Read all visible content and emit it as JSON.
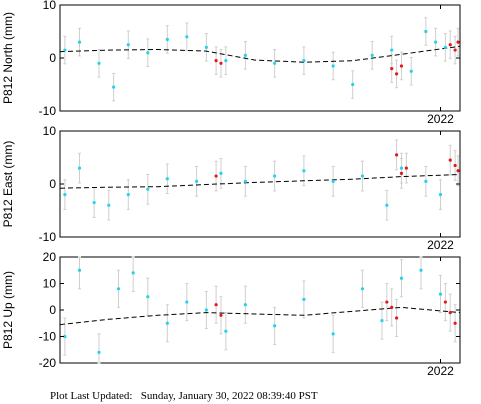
{
  "footer": {
    "label": "Plot Last Updated:",
    "timestamp": "Sunday, January 30, 2022 08:39:40 PST"
  },
  "colors": {
    "normal": "#22d3ee",
    "recent": "#e31a1c",
    "errorbar": "#cfcfcf",
    "model": "#000000",
    "frame": "#000000"
  },
  "chart_data": [
    {
      "type": "scatter",
      "ylabel": "P812 North (mm)",
      "ylim": [
        -10,
        10
      ],
      "yticks": [
        -10,
        0,
        10
      ],
      "xlim": [
        2018.1,
        2022.2
      ],
      "xticks": [
        {
          "value": 2022.0,
          "label": "2022"
        }
      ],
      "error_bars": true,
      "sigma": 2.6,
      "trend": {
        "x": [
          2018.1,
          2018.6,
          2019.1,
          2019.6,
          2020.1,
          2020.6,
          2021.1,
          2021.6,
          2022.2
        ],
        "y": [
          1.2,
          1.5,
          1.6,
          1.3,
          -0.4,
          -0.8,
          -0.5,
          0.7,
          2.2
        ]
      },
      "normal_points": [
        [
          2018.15,
          1.5
        ],
        [
          2018.3,
          3.0
        ],
        [
          2018.5,
          -1.0
        ],
        [
          2018.65,
          -5.5
        ],
        [
          2018.8,
          2.5
        ],
        [
          2019.0,
          1.0
        ],
        [
          2019.2,
          3.5
        ],
        [
          2019.4,
          4.0
        ],
        [
          2019.6,
          2.0
        ],
        [
          2019.8,
          -0.5
        ],
        [
          2020.0,
          0.5
        ],
        [
          2020.3,
          -1.0
        ],
        [
          2020.6,
          -0.5
        ],
        [
          2020.9,
          -1.5
        ],
        [
          2021.1,
          -5.0
        ],
        [
          2021.3,
          0.5
        ],
        [
          2021.5,
          1.5
        ],
        [
          2021.7,
          -2.5
        ],
        [
          2021.85,
          5.0
        ],
        [
          2021.95,
          3.0
        ],
        [
          2022.05,
          2.0
        ]
      ],
      "recent_points": [
        [
          2019.7,
          -0.5
        ],
        [
          2019.75,
          -1.0
        ],
        [
          2021.5,
          -2.0
        ],
        [
          2021.55,
          -3.0
        ],
        [
          2021.6,
          -1.5
        ],
        [
          2022.1,
          2.5
        ],
        [
          2022.15,
          1.5
        ],
        [
          2022.18,
          3.0
        ]
      ]
    },
    {
      "type": "scatter",
      "ylabel": "P812 East (mm)",
      "ylim": [
        -10,
        10
      ],
      "yticks": [
        -10,
        0,
        10
      ],
      "xlim": [
        2018.1,
        2022.2
      ],
      "xticks": [
        {
          "value": 2022.0,
          "label": "2022"
        }
      ],
      "error_bars": true,
      "sigma": 2.8,
      "trend": {
        "x": [
          2018.1,
          2018.6,
          2019.1,
          2019.6,
          2020.1,
          2020.6,
          2021.1,
          2021.6,
          2022.2
        ],
        "y": [
          -0.8,
          -0.6,
          -0.5,
          -0.1,
          0.3,
          0.6,
          0.9,
          1.4,
          1.8
        ]
      },
      "normal_points": [
        [
          2018.15,
          -2.0
        ],
        [
          2018.3,
          3.0
        ],
        [
          2018.45,
          -3.5
        ],
        [
          2018.6,
          -4.0
        ],
        [
          2018.8,
          -2.0
        ],
        [
          2019.0,
          -1.0
        ],
        [
          2019.2,
          1.0
        ],
        [
          2019.5,
          0.5
        ],
        [
          2019.75,
          2.0
        ],
        [
          2020.0,
          0.5
        ],
        [
          2020.3,
          1.5
        ],
        [
          2020.6,
          2.5
        ],
        [
          2020.9,
          0.5
        ],
        [
          2021.2,
          1.5
        ],
        [
          2021.45,
          -4.0
        ],
        [
          2021.6,
          3.0
        ],
        [
          2021.85,
          0.5
        ],
        [
          2022.0,
          -2.0
        ]
      ],
      "recent_points": [
        [
          2019.7,
          1.5
        ],
        [
          2021.55,
          5.5
        ],
        [
          2021.6,
          2.0
        ],
        [
          2021.65,
          3.0
        ],
        [
          2022.1,
          4.5
        ],
        [
          2022.15,
          3.5
        ],
        [
          2022.18,
          2.5
        ]
      ]
    },
    {
      "type": "scatter",
      "ylabel": "P812 Up (mm)",
      "ylim": [
        -20,
        20
      ],
      "yticks": [
        -20,
        -10,
        0,
        10,
        20
      ],
      "xlim": [
        2018.1,
        2022.2
      ],
      "xticks": [
        {
          "value": 2022.0,
          "label": "2022"
        }
      ],
      "error_bars": true,
      "sigma": 7.0,
      "trend": {
        "x": [
          2018.1,
          2018.6,
          2019.1,
          2019.6,
          2020.1,
          2020.6,
          2021.1,
          2021.6,
          2022.2
        ],
        "y": [
          -5.5,
          -3.5,
          -2.0,
          -1.0,
          -1.5,
          -2.0,
          -0.5,
          1.0,
          -1.0
        ]
      },
      "normal_points": [
        [
          2018.15,
          -10.0
        ],
        [
          2018.3,
          15.0
        ],
        [
          2018.5,
          -16.0
        ],
        [
          2018.7,
          8.0
        ],
        [
          2018.85,
          14.0
        ],
        [
          2019.0,
          5.0
        ],
        [
          2019.2,
          -5.0
        ],
        [
          2019.4,
          3.0
        ],
        [
          2019.6,
          0.0
        ],
        [
          2019.8,
          -8.0
        ],
        [
          2020.0,
          2.0
        ],
        [
          2020.3,
          -6.0
        ],
        [
          2020.6,
          4.0
        ],
        [
          2020.9,
          -9.0
        ],
        [
          2021.2,
          8.0
        ],
        [
          2021.4,
          -4.0
        ],
        [
          2021.6,
          12.0
        ],
        [
          2021.8,
          15.0
        ],
        [
          2022.0,
          6.0
        ]
      ],
      "recent_points": [
        [
          2019.7,
          2.0
        ],
        [
          2019.75,
          -2.0
        ],
        [
          2021.45,
          3.0
        ],
        [
          2021.5,
          1.0
        ],
        [
          2021.55,
          -3.0
        ],
        [
          2022.05,
          3.0
        ],
        [
          2022.1,
          -1.0
        ],
        [
          2022.15,
          -5.0
        ]
      ]
    }
  ]
}
